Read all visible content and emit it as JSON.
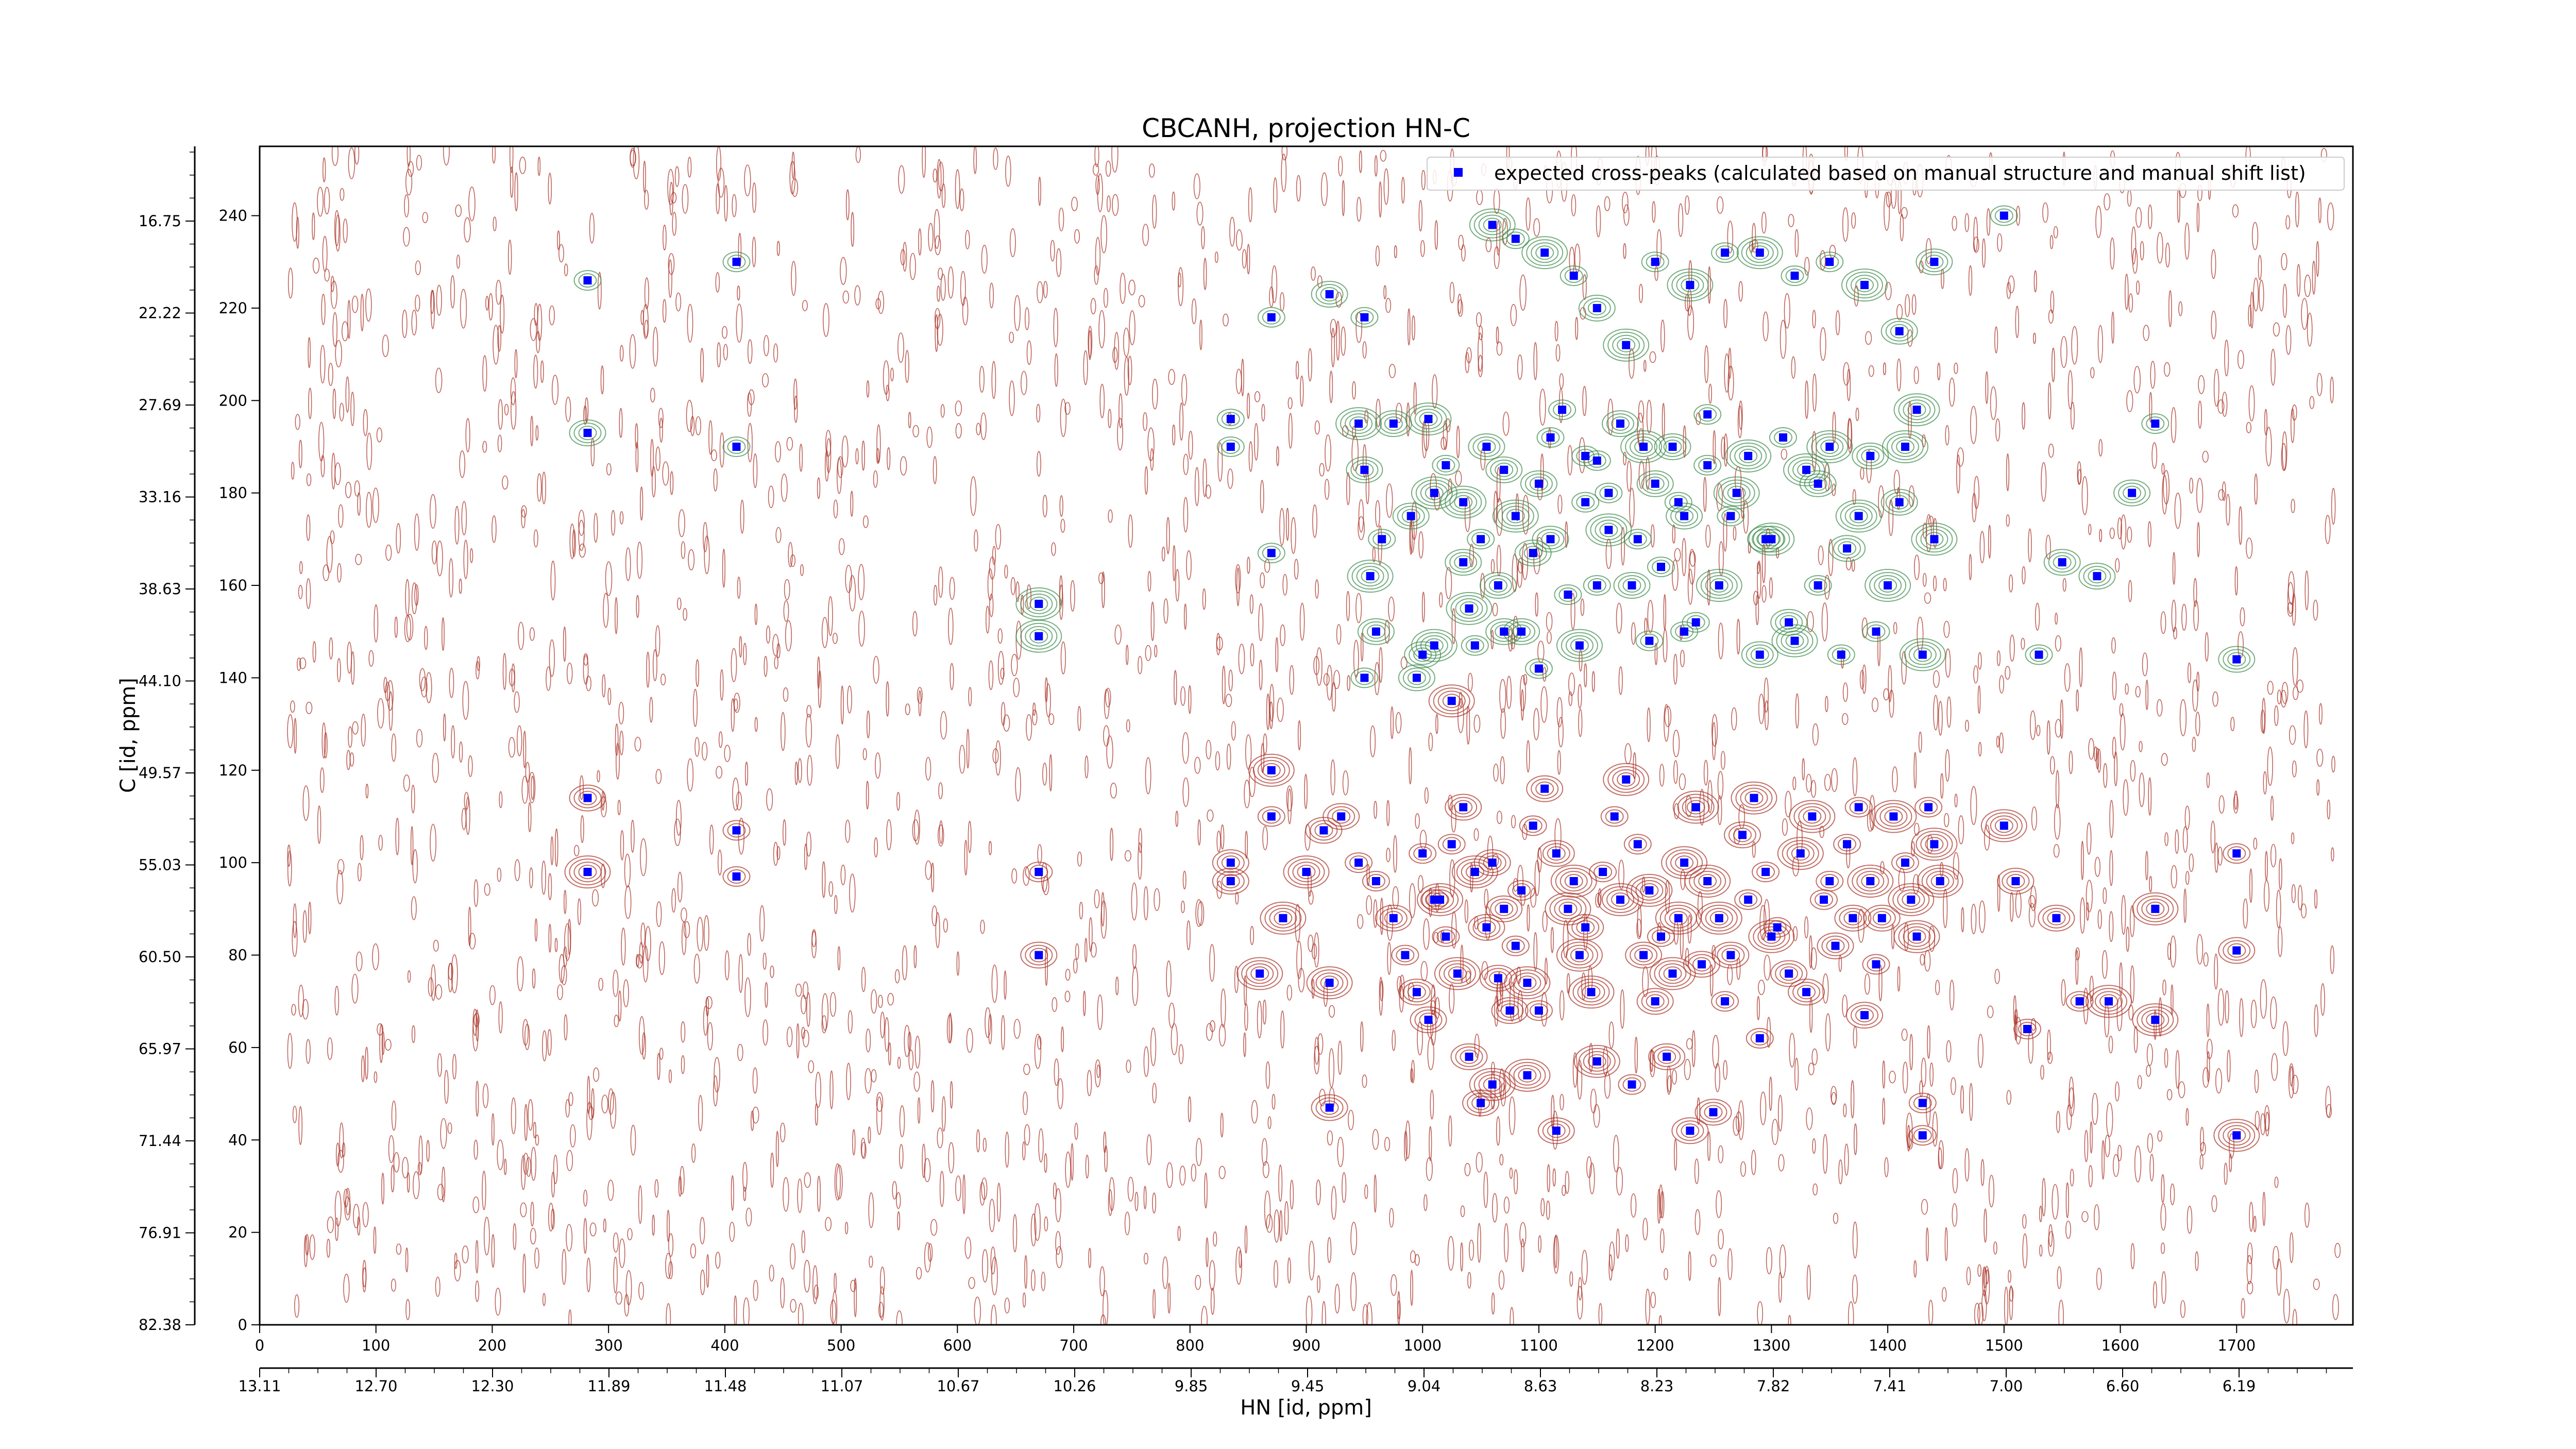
{
  "chart_data": {
    "type": "scatter",
    "title": "CBCANH, projection HN-C",
    "xlabel": "HN [id, ppm]",
    "ylabel": "C [id, ppm]",
    "xlim": [
      0,
      1800
    ],
    "ylim": [
      0,
      255
    ],
    "x_ticks": [
      0,
      100,
      200,
      300,
      400,
      500,
      600,
      700,
      800,
      900,
      1000,
      1100,
      1200,
      1300,
      1400,
      1500,
      1600,
      1700
    ],
    "y_ticks": [
      0,
      20,
      40,
      60,
      80,
      100,
      120,
      140,
      160,
      180,
      200,
      220,
      240
    ],
    "hn_ppm_ticks": [
      "13.11",
      "12.70",
      "12.30",
      "11.89",
      "11.48",
      "11.07",
      "10.67",
      "10.26",
      "9.85",
      "9.45",
      "9.04",
      "8.63",
      "8.23",
      "7.82",
      "7.41",
      "7.00",
      "6.60",
      "6.19"
    ],
    "c_ppm_ticks": [
      "82.38",
      "76.91",
      "71.44",
      "65.97",
      "60.50",
      "55.03",
      "49.57",
      "44.10",
      "38.63",
      "33.16",
      "27.69",
      "22.22",
      "16.75"
    ],
    "legend": {
      "position": "top-right",
      "entries": [
        "expected cross-peaks (calculated based on manual structure and manual shift list)"
      ]
    },
    "colors": {
      "expected_marker": "#0000ff",
      "positive_contour": "#a93226",
      "negative_contour": "#3c8c4c"
    },
    "series": [
      {
        "name": "expected cross-peaks (calculated based on manual structure and manual shift list)",
        "points": [
          [
            282,
            226
          ],
          [
            410,
            230
          ],
          [
            282,
            193
          ],
          [
            410,
            190
          ],
          [
            282,
            114
          ],
          [
            410,
            107
          ],
          [
            282,
            98
          ],
          [
            410,
            97
          ],
          [
            670,
            156
          ],
          [
            670,
            149
          ],
          [
            670,
            98
          ],
          [
            670,
            80
          ],
          [
            835,
            196
          ],
          [
            835,
            190
          ],
          [
            835,
            100
          ],
          [
            835,
            96
          ],
          [
            870,
            218
          ],
          [
            870,
            167
          ],
          [
            870,
            120
          ],
          [
            870,
            110
          ],
          [
            920,
            223
          ],
          [
            920,
            74
          ],
          [
            920,
            47
          ],
          [
            950,
            218
          ],
          [
            945,
            195
          ],
          [
            950,
            185
          ],
          [
            955,
            162
          ],
          [
            960,
            150
          ],
          [
            965,
            170
          ],
          [
            975,
            195
          ],
          [
            990,
            175
          ],
          [
            995,
            140
          ],
          [
            1000,
            145
          ],
          [
            1010,
            147
          ],
          [
            1025,
            135
          ],
          [
            1035,
            165
          ],
          [
            1040,
            155
          ],
          [
            1045,
            147
          ],
          [
            1055,
            190
          ],
          [
            1070,
            185
          ],
          [
            1080,
            175
          ],
          [
            1095,
            167
          ],
          [
            1100,
            182
          ],
          [
            1110,
            192
          ],
          [
            1125,
            158
          ],
          [
            1135,
            147
          ],
          [
            1140,
            178
          ],
          [
            1150,
            187
          ],
          [
            1160,
            172
          ],
          [
            1170,
            195
          ],
          [
            1180,
            160
          ],
          [
            1195,
            148
          ],
          [
            1200,
            182
          ],
          [
            1215,
            190
          ],
          [
            1225,
            175
          ],
          [
            1235,
            152
          ],
          [
            1245,
            197
          ],
          [
            1255,
            160
          ],
          [
            1265,
            175
          ],
          [
            1280,
            188
          ],
          [
            1290,
            145
          ],
          [
            1300,
            170
          ],
          [
            1310,
            192
          ],
          [
            1320,
            148
          ],
          [
            1330,
            185
          ],
          [
            1340,
            160
          ],
          [
            1350,
            190
          ],
          [
            1360,
            145
          ],
          [
            1375,
            175
          ],
          [
            1385,
            188
          ],
          [
            1400,
            160
          ],
          [
            1415,
            190
          ],
          [
            1430,
            145
          ],
          [
            1440,
            170
          ],
          [
            1060,
            238
          ],
          [
            1080,
            235
          ],
          [
            1105,
            232
          ],
          [
            1130,
            227
          ],
          [
            1150,
            220
          ],
          [
            1175,
            212
          ],
          [
            1200,
            230
          ],
          [
            1230,
            225
          ],
          [
            1260,
            232
          ],
          [
            1290,
            232
          ],
          [
            1320,
            227
          ],
          [
            1350,
            230
          ],
          [
            1380,
            225
          ],
          [
            1410,
            215
          ],
          [
            1440,
            230
          ],
          [
            1500,
            240
          ],
          [
            1530,
            145
          ],
          [
            1550,
            165
          ],
          [
            1580,
            162
          ],
          [
            1610,
            180
          ],
          [
            1630,
            195
          ],
          [
            1700,
            144
          ],
          [
            1700,
            102
          ],
          [
            1700,
            81
          ],
          [
            1700,
            41
          ],
          [
            860,
            76
          ],
          [
            880,
            88
          ],
          [
            900,
            98
          ],
          [
            915,
            107
          ],
          [
            930,
            110
          ],
          [
            945,
            100
          ],
          [
            960,
            96
          ],
          [
            975,
            88
          ],
          [
            985,
            80
          ],
          [
            995,
            72
          ],
          [
            1005,
            66
          ],
          [
            1015,
            92
          ],
          [
            1025,
            104
          ],
          [
            1035,
            112
          ],
          [
            1045,
            98
          ],
          [
            1055,
            86
          ],
          [
            1065,
            75
          ],
          [
            1075,
            68
          ],
          [
            1085,
            94
          ],
          [
            1095,
            108
          ],
          [
            1105,
            116
          ],
          [
            1115,
            102
          ],
          [
            1125,
            90
          ],
          [
            1135,
            80
          ],
          [
            1145,
            72
          ],
          [
            1155,
            98
          ],
          [
            1165,
            110
          ],
          [
            1175,
            118
          ],
          [
            1185,
            104
          ],
          [
            1195,
            94
          ],
          [
            1205,
            84
          ],
          [
            1215,
            76
          ],
          [
            1225,
            100
          ],
          [
            1235,
            112
          ],
          [
            1245,
            96
          ],
          [
            1255,
            88
          ],
          [
            1265,
            80
          ],
          [
            1275,
            106
          ],
          [
            1285,
            114
          ],
          [
            1295,
            98
          ],
          [
            1305,
            86
          ],
          [
            1315,
            76
          ],
          [
            1325,
            102
          ],
          [
            1335,
            110
          ],
          [
            1345,
            92
          ],
          [
            1355,
            82
          ],
          [
            1365,
            104
          ],
          [
            1375,
            112
          ],
          [
            1385,
            96
          ],
          [
            1395,
            88
          ],
          [
            1405,
            110
          ],
          [
            1415,
            100
          ],
          [
            1425,
            84
          ],
          [
            1435,
            112
          ],
          [
            1445,
            96
          ],
          [
            1500,
            108
          ],
          [
            1510,
            96
          ],
          [
            1520,
            64
          ],
          [
            1545,
            88
          ],
          [
            1565,
            70
          ],
          [
            1590,
            70
          ],
          [
            1630,
            66
          ],
          [
            1630,
            90
          ],
          [
            1040,
            58
          ],
          [
            1050,
            48
          ],
          [
            1060,
            52
          ],
          [
            1090,
            54
          ],
          [
            1115,
            42
          ],
          [
            1150,
            57
          ],
          [
            1180,
            52
          ],
          [
            1210,
            58
          ],
          [
            1230,
            42
          ],
          [
            1250,
            46
          ],
          [
            1290,
            62
          ],
          [
            1380,
            67
          ],
          [
            1430,
            48
          ],
          [
            1430,
            41
          ],
          [
            1000,
            102
          ],
          [
            1010,
            92
          ],
          [
            1020,
            84
          ],
          [
            1030,
            76
          ],
          [
            1060,
            100
          ],
          [
            1070,
            90
          ],
          [
            1080,
            82
          ],
          [
            1090,
            74
          ],
          [
            1100,
            68
          ],
          [
            1130,
            96
          ],
          [
            1140,
            86
          ],
          [
            1170,
            92
          ],
          [
            1190,
            80
          ],
          [
            1200,
            70
          ],
          [
            1220,
            88
          ],
          [
            1240,
            78
          ],
          [
            1260,
            70
          ],
          [
            1280,
            92
          ],
          [
            1300,
            84
          ],
          [
            1330,
            72
          ],
          [
            1350,
            96
          ],
          [
            1370,
            88
          ],
          [
            1390,
            78
          ],
          [
            1420,
            92
          ],
          [
            1440,
            104
          ],
          [
            1005,
            196
          ],
          [
            1020,
            186
          ],
          [
            1035,
            178
          ],
          [
            1050,
            170
          ],
          [
            1065,
            160
          ],
          [
            1085,
            150
          ],
          [
            1100,
            142
          ],
          [
            1120,
            198
          ],
          [
            1140,
            188
          ],
          [
            1160,
            180
          ],
          [
            1185,
            170
          ],
          [
            1205,
            164
          ],
          [
            1225,
            150
          ],
          [
            1245,
            186
          ],
          [
            1270,
            180
          ],
          [
            1295,
            170
          ],
          [
            1315,
            152
          ],
          [
            1340,
            182
          ],
          [
            1365,
            168
          ],
          [
            1390,
            150
          ],
          [
            1410,
            178
          ],
          [
            1425,
            198
          ],
          [
            1220,
            178
          ],
          [
            1190,
            190
          ],
          [
            1150,
            160
          ],
          [
            1110,
            170
          ],
          [
            1070,
            150
          ],
          [
            950,
            140
          ],
          [
            1010,
            180
          ]
        ]
      }
    ]
  }
}
